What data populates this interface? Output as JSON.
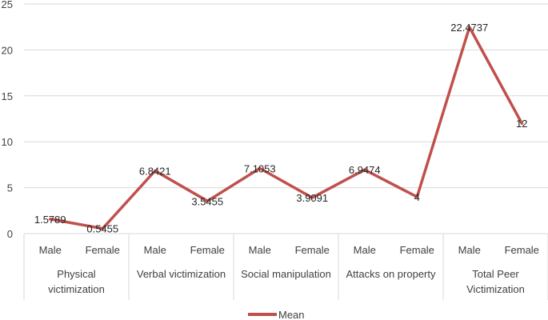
{
  "chart_data": {
    "type": "line",
    "groups": [
      {
        "label_lines": [
          "Physical",
          "victimization"
        ],
        "categories": [
          "Male",
          "Female"
        ]
      },
      {
        "label_lines": [
          "Verbal victimization"
        ],
        "categories": [
          "Male",
          "Female"
        ]
      },
      {
        "label_lines": [
          "Social manipulation"
        ],
        "categories": [
          "Male",
          "Female"
        ]
      },
      {
        "label_lines": [
          "Attacks on property"
        ],
        "categories": [
          "Male",
          "Female"
        ]
      },
      {
        "label_lines": [
          "Total Peer",
          "Victimization"
        ],
        "categories": [
          "Male",
          "Female"
        ]
      }
    ],
    "series": [
      {
        "name": "Mean",
        "color": "#C0504D",
        "values": [
          1.5789,
          0.5455,
          6.8421,
          3.5455,
          7.1053,
          3.9091,
          6.9474,
          4,
          22.4737,
          12
        ],
        "labels": [
          "1.5789",
          "0.5455",
          "6.8421",
          "3.5455",
          "7.1053",
          "3.9091",
          "6.9474",
          "4",
          "22.4737",
          "12"
        ]
      }
    ],
    "yticks": [
      "0",
      "5",
      "10",
      "15",
      "20",
      "25"
    ],
    "ylim": [
      0,
      25
    ],
    "grid": true,
    "legend": "bottom"
  }
}
